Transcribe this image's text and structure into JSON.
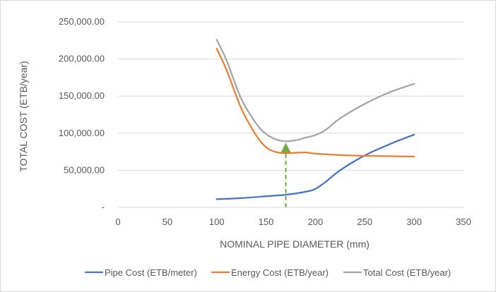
{
  "chart_data": {
    "type": "line",
    "title": "",
    "xlabel": "NOMINAL PIPE DIAMETER (mm)",
    "ylabel": "TOTAL COST (ETB/year)",
    "xlim": [
      0,
      350
    ],
    "ylim": [
      0,
      250000
    ],
    "x_ticks": [
      "0",
      "50",
      "100",
      "150",
      "200",
      "250",
      "300",
      "350"
    ],
    "y_ticks": [
      "-",
      "50,000.00",
      "100,000.00",
      "150,000.00",
      "200,000.00",
      "250,000.00"
    ],
    "grid": "horizontal",
    "legend": "bottom",
    "series": [
      {
        "name": "Pipe Cost (ETB/meter)",
        "color": "#4472c4",
        "x": [
          100,
          125,
          150,
          170,
          190,
          200,
          210,
          225,
          250,
          275,
          300
        ],
        "y": [
          11000,
          12500,
          15000,
          17000,
          21000,
          25000,
          34000,
          50000,
          70000,
          85000,
          98000
        ]
      },
      {
        "name": "Energy Cost (ETB/year)",
        "color": "#ed7d31",
        "x": [
          100,
          110,
          125,
          140,
          150,
          160,
          170,
          180,
          190,
          200,
          225,
          250,
          275,
          300
        ],
        "y": [
          214000,
          185000,
          133000,
          97000,
          81000,
          74500,
          73000,
          73500,
          74000,
          72500,
          70500,
          69500,
          69000,
          68500
        ]
      },
      {
        "name": "Total Cost (ETB/year)",
        "color": "#a5a5a5",
        "x": [
          100,
          110,
          125,
          140,
          150,
          160,
          170,
          180,
          190,
          200,
          210,
          225,
          250,
          275,
          300
        ],
        "y": [
          226000,
          198000,
          146000,
          113000,
          99000,
          91500,
          89000,
          90500,
          94000,
          97500,
          104000,
          120000,
          139500,
          155000,
          166500
        ]
      }
    ],
    "annotation": {
      "type": "dashed-arrow",
      "color": "#70ad47",
      "x": 170,
      "y_from": 0,
      "y_to": 89000
    }
  }
}
